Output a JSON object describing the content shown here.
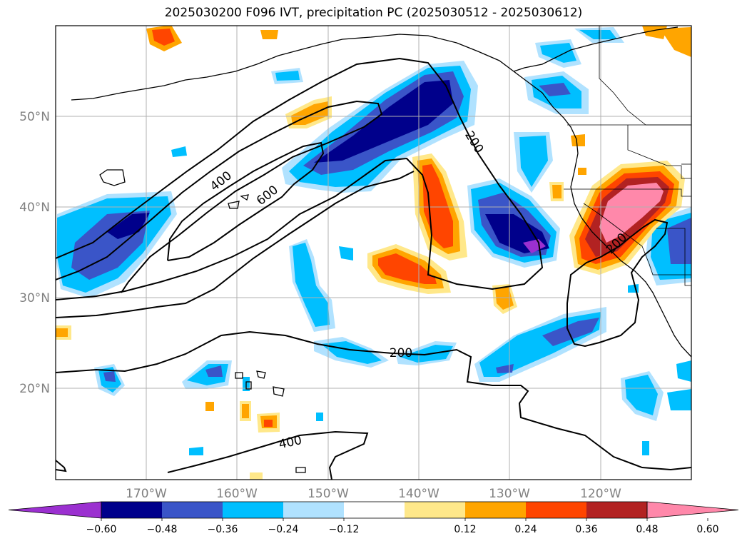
{
  "title": "2025030200 F096 IVT, precipitation PC (2025030512 - 2025030612)",
  "lat_labels": [
    "50°N",
    "40°N",
    "30°N",
    "20°N"
  ],
  "lon_labels": [
    "170°W",
    "160°W",
    "150°W",
    "140°W",
    "130°W",
    "120°W"
  ],
  "contour_labels": [
    "400",
    "600",
    "200",
    "200",
    "200",
    "400"
  ],
  "colorbar": {
    "ticks": [
      "−0.60",
      "−0.48",
      "−0.36",
      "−0.24",
      "−0.12",
      "0.12",
      "0.24",
      "0.36",
      "0.48",
      "0.60"
    ],
    "colors": [
      "#9b30d0",
      "#00008b",
      "#3a55c8",
      "#00bfff",
      "#b0e2ff",
      "#ffffff",
      "#ffe88a",
      "#ffa500",
      "#ff4500",
      "#b22222",
      "#ff88aa"
    ]
  }
}
